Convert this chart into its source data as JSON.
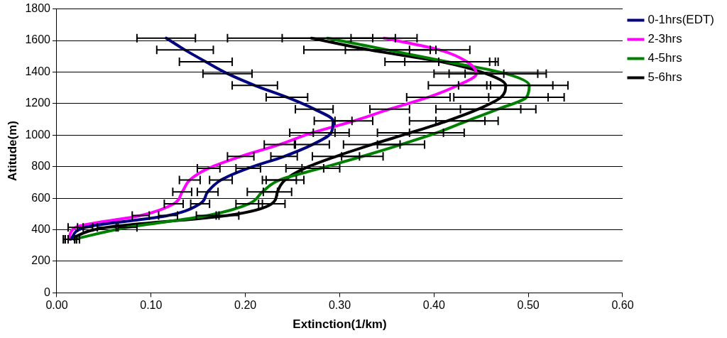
{
  "chart_data": {
    "type": "line",
    "xlabel": "Extinction(1/km)",
    "ylabel": "Atitude(m)",
    "xlim": [
      0,
      0.6
    ],
    "xticks": [
      {
        "value": 0,
        "label": "0.00"
      },
      {
        "value": 0.1,
        "label": "0.10"
      },
      {
        "value": 0.2,
        "label": "0.20"
      },
      {
        "value": 0.3,
        "label": "0.30"
      },
      {
        "value": 0.4,
        "label": "0.40"
      },
      {
        "value": 0.5,
        "label": "0.50"
      },
      {
        "value": 0.6,
        "label": "0.60"
      }
    ],
    "ylim": [
      0,
      1800
    ],
    "yticks": [
      0,
      200,
      400,
      600,
      800,
      1000,
      1200,
      1400,
      1600,
      1800
    ],
    "grid": "y",
    "legend": "top right",
    "marker": "none",
    "line_style": "solid",
    "series": [
      {
        "name": "0-1hrs(EDT)",
        "color": "#000080",
        "values": [
          1615,
          1540,
          1465,
          1390,
          1315,
          1240,
          1165,
          1090,
          1015,
          940,
          865,
          790,
          715,
          640,
          565,
          490,
          415,
          340
        ],
        "x": [
          0.116,
          0.136,
          0.158,
          0.181,
          0.21,
          0.244,
          0.273,
          0.293,
          0.291,
          0.271,
          0.241,
          0.203,
          0.174,
          0.16,
          0.152,
          0.118,
          0.03,
          0.015
        ],
        "xerrors": [
          0.031,
          0.03,
          0.028,
          0.026,
          0.024,
          0.022,
          0.02,
          0.02,
          0.019,
          0.018,
          0.014,
          0.013,
          0.012,
          0.011,
          0.01,
          0.01,
          0.008,
          0.006
        ]
      },
      {
        "name": "2-3hrs",
        "color": "#ff00ff",
        "values": [
          1615,
          1540,
          1465,
          1390,
          1315,
          1240,
          1165,
          1090,
          1015,
          940,
          865,
          790,
          715,
          640,
          565,
          490,
          415,
          340
        ],
        "x": [
          0.347,
          0.406,
          0.435,
          0.445,
          0.425,
          0.394,
          0.353,
          0.315,
          0.271,
          0.236,
          0.195,
          0.161,
          0.141,
          0.133,
          0.124,
          0.089,
          0.02,
          0.013
        ],
        "xerrors": [
          0.035,
          0.032,
          0.03,
          0.029,
          0.031,
          0.023,
          0.021,
          0.02,
          0.024,
          0.016,
          0.014,
          0.012,
          0.011,
          0.01,
          0.01,
          0.009,
          0.008,
          0.006
        ]
      },
      {
        "name": "4-5hrs",
        "color": "#008000",
        "values": [
          1615,
          1540,
          1465,
          1390,
          1315,
          1240,
          1165,
          1090,
          1015,
          940,
          865,
          790,
          715,
          640,
          565,
          490,
          415,
          340
        ],
        "x": [
          0.287,
          0.351,
          0.414,
          0.476,
          0.501,
          0.498,
          0.468,
          0.435,
          0.403,
          0.365,
          0.324,
          0.28,
          0.236,
          0.218,
          0.204,
          0.16,
          0.075,
          0.018
        ],
        "xerrors": [
          0.048,
          0.045,
          0.045,
          0.043,
          0.041,
          0.04,
          0.04,
          0.033,
          0.029,
          0.025,
          0.022,
          0.02,
          0.018,
          0.016,
          0.014,
          0.012,
          0.01,
          0.006
        ]
      },
      {
        "name": "5-6hrs",
        "color": "#000000",
        "values": [
          1615,
          1540,
          1465,
          1390,
          1315,
          1240,
          1165,
          1090,
          1015,
          940,
          865,
          790,
          715,
          640,
          565,
          490,
          415,
          340
        ],
        "x": [
          0.27,
          0.332,
          0.408,
          0.455,
          0.476,
          0.471,
          0.447,
          0.414,
          0.375,
          0.334,
          0.296,
          0.263,
          0.242,
          0.234,
          0.228,
          0.181,
          0.053,
          0.013
        ],
        "xerrors": [
          0.089,
          0.07,
          0.06,
          0.055,
          0.05,
          0.05,
          0.045,
          0.04,
          0.035,
          0.03,
          0.025,
          0.02,
          0.02,
          0.015,
          0.014,
          0.012,
          0.01,
          0.006
        ]
      }
    ]
  }
}
